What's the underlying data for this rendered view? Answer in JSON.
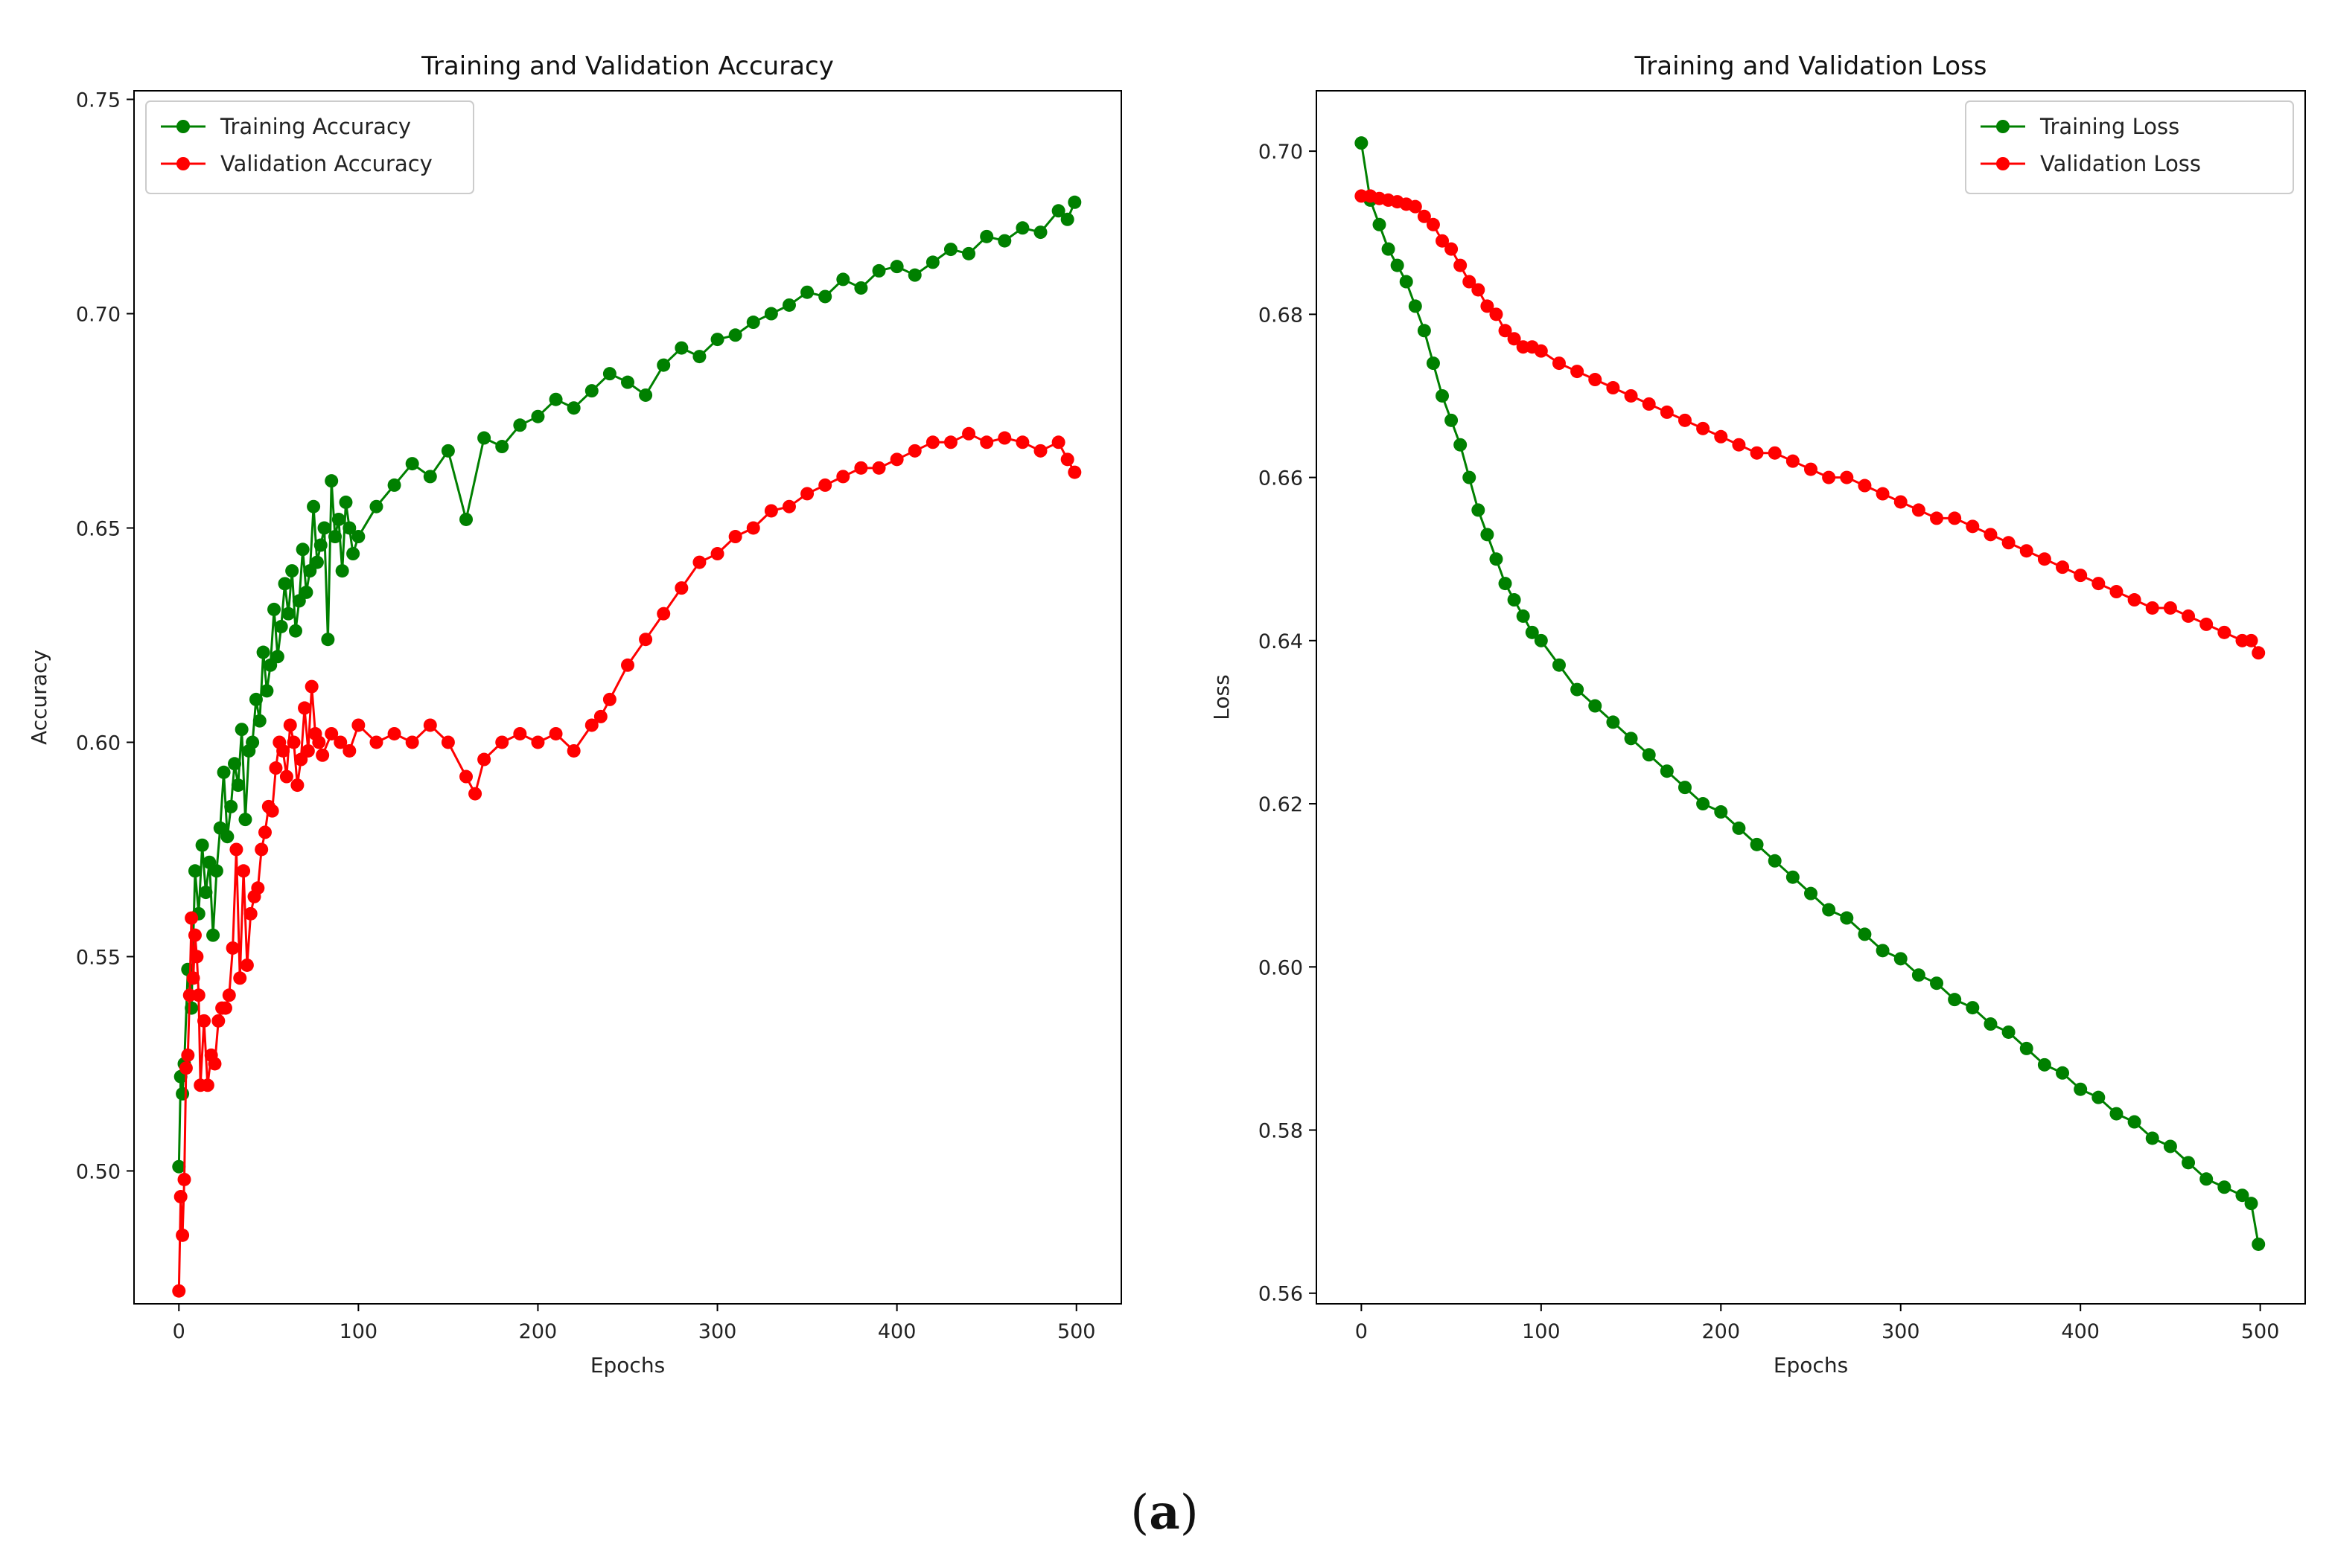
{
  "caption": {
    "open": "(",
    "letter": "a",
    "close": ")"
  },
  "colors": {
    "training": "#008000",
    "validation": "#ff0000",
    "axis": "#000000"
  },
  "chart_data": [
    {
      "type": "line",
      "title": "Training and Validation Accuracy",
      "xlabel": "Epochs",
      "ylabel": "Accuracy",
      "xlim": [
        -25,
        525
      ],
      "ylim": [
        0.469,
        0.752
      ],
      "xticks": [
        0,
        100,
        200,
        300,
        400,
        500
      ],
      "xtick_labels": [
        "0",
        "100",
        "200",
        "300",
        "400",
        "500"
      ],
      "yticks": [
        0.5,
        0.55,
        0.6,
        0.65,
        0.7,
        0.75
      ],
      "ytick_labels": [
        "0.50",
        "0.55",
        "0.60",
        "0.65",
        "0.70",
        "0.75"
      ],
      "legend_position": "top-left",
      "series": [
        {
          "name": "Training Accuracy",
          "color": "#008000",
          "x": [
            0,
            1,
            2,
            3,
            5,
            7,
            9,
            11,
            13,
            15,
            17,
            19,
            21,
            23,
            25,
            27,
            29,
            31,
            33,
            35,
            37,
            39,
            41,
            43,
            45,
            47,
            49,
            51,
            53,
            55,
            57,
            59,
            61,
            63,
            65,
            67,
            69,
            71,
            73,
            75,
            77,
            79,
            81,
            83,
            85,
            87,
            89,
            91,
            93,
            95,
            97,
            100,
            110,
            120,
            130,
            140,
            150,
            160,
            170,
            180,
            190,
            200,
            210,
            220,
            230,
            240,
            250,
            260,
            270,
            280,
            290,
            300,
            310,
            320,
            330,
            340,
            350,
            360,
            370,
            380,
            390,
            400,
            410,
            420,
            430,
            440,
            450,
            460,
            470,
            480,
            490,
            495,
            499
          ],
          "y": [
            0.501,
            0.522,
            0.518,
            0.525,
            0.547,
            0.538,
            0.57,
            0.56,
            0.576,
            0.565,
            0.572,
            0.555,
            0.57,
            0.58,
            0.593,
            0.578,
            0.585,
            0.595,
            0.59,
            0.603,
            0.582,
            0.598,
            0.6,
            0.61,
            0.605,
            0.621,
            0.612,
            0.618,
            0.631,
            0.62,
            0.627,
            0.637,
            0.63,
            0.64,
            0.626,
            0.633,
            0.645,
            0.635,
            0.64,
            0.655,
            0.642,
            0.646,
            0.65,
            0.624,
            0.661,
            0.648,
            0.652,
            0.64,
            0.656,
            0.65,
            0.644,
            0.648,
            0.655,
            0.66,
            0.665,
            0.662,
            0.668,
            0.652,
            0.671,
            0.669,
            0.674,
            0.676,
            0.68,
            0.678,
            0.682,
            0.686,
            0.684,
            0.681,
            0.688,
            0.692,
            0.69,
            0.694,
            0.695,
            0.698,
            0.7,
            0.702,
            0.705,
            0.704,
            0.708,
            0.706,
            0.71,
            0.711,
            0.709,
            0.712,
            0.715,
            0.714,
            0.718,
            0.717,
            0.72,
            0.719,
            0.724,
            0.722,
            0.726
          ]
        },
        {
          "name": "Validation Accuracy",
          "color": "#ff0000",
          "x": [
            0,
            1,
            2,
            3,
            4,
            5,
            6,
            7,
            8,
            9,
            10,
            11,
            12,
            14,
            16,
            18,
            20,
            22,
            24,
            26,
            28,
            30,
            32,
            34,
            36,
            38,
            40,
            42,
            44,
            46,
            48,
            50,
            52,
            54,
            56,
            58,
            60,
            62,
            64,
            66,
            68,
            70,
            72,
            74,
            76,
            78,
            80,
            85,
            90,
            95,
            100,
            110,
            120,
            130,
            140,
            150,
            160,
            165,
            170,
            180,
            190,
            200,
            210,
            220,
            230,
            235,
            240,
            250,
            260,
            270,
            280,
            290,
            300,
            310,
            320,
            330,
            340,
            350,
            360,
            370,
            380,
            390,
            400,
            410,
            420,
            430,
            440,
            450,
            460,
            470,
            480,
            490,
            495,
            499
          ],
          "y": [
            0.472,
            0.494,
            0.485,
            0.498,
            0.524,
            0.527,
            0.541,
            0.559,
            0.545,
            0.555,
            0.55,
            0.541,
            0.52,
            0.535,
            0.52,
            0.527,
            0.525,
            0.535,
            0.538,
            0.538,
            0.541,
            0.552,
            0.575,
            0.545,
            0.57,
            0.548,
            0.56,
            0.564,
            0.566,
            0.575,
            0.579,
            0.585,
            0.584,
            0.594,
            0.6,
            0.598,
            0.592,
            0.604,
            0.6,
            0.59,
            0.596,
            0.608,
            0.598,
            0.613,
            0.602,
            0.6,
            0.597,
            0.602,
            0.6,
            0.598,
            0.604,
            0.6,
            0.602,
            0.6,
            0.604,
            0.6,
            0.592,
            0.588,
            0.596,
            0.6,
            0.602,
            0.6,
            0.602,
            0.598,
            0.604,
            0.606,
            0.61,
            0.618,
            0.624,
            0.63,
            0.636,
            0.642,
            0.644,
            0.648,
            0.65,
            0.654,
            0.655,
            0.658,
            0.66,
            0.662,
            0.664,
            0.664,
            0.666,
            0.668,
            0.67,
            0.67,
            0.672,
            0.67,
            0.671,
            0.67,
            0.668,
            0.67,
            0.666,
            0.663
          ]
        }
      ]
    },
    {
      "type": "line",
      "title": "Training and Validation Loss",
      "xlabel": "Epochs",
      "ylabel": "Loss",
      "xlim": [
        -25,
        525
      ],
      "ylim": [
        0.5587,
        0.7074
      ],
      "xticks": [
        0,
        100,
        200,
        300,
        400,
        500
      ],
      "xtick_labels": [
        "0",
        "100",
        "200",
        "300",
        "400",
        "500"
      ],
      "yticks": [
        0.56,
        0.58,
        0.6,
        0.62,
        0.64,
        0.66,
        0.68,
        0.7
      ],
      "ytick_labels": [
        "0.56",
        "0.58",
        "0.60",
        "0.62",
        "0.64",
        "0.66",
        "0.68",
        "0.70"
      ],
      "legend_position": "top-right",
      "series": [
        {
          "name": "Training Loss",
          "color": "#008000",
          "x": [
            0,
            5,
            10,
            15,
            20,
            25,
            30,
            35,
            40,
            45,
            50,
            55,
            60,
            65,
            70,
            75,
            80,
            85,
            90,
            95,
            100,
            110,
            120,
            130,
            140,
            150,
            160,
            170,
            180,
            190,
            200,
            210,
            220,
            230,
            240,
            250,
            260,
            270,
            280,
            290,
            300,
            310,
            320,
            330,
            340,
            350,
            360,
            370,
            380,
            390,
            400,
            410,
            420,
            430,
            440,
            450,
            460,
            470,
            480,
            490,
            495,
            499
          ],
          "y": [
            0.701,
            0.694,
            0.691,
            0.688,
            0.686,
            0.684,
            0.681,
            0.678,
            0.674,
            0.67,
            0.667,
            0.664,
            0.66,
            0.656,
            0.653,
            0.65,
            0.647,
            0.645,
            0.643,
            0.641,
            0.64,
            0.637,
            0.634,
            0.632,
            0.63,
            0.628,
            0.626,
            0.624,
            0.622,
            0.62,
            0.619,
            0.617,
            0.615,
            0.613,
            0.611,
            0.609,
            0.607,
            0.606,
            0.604,
            0.602,
            0.601,
            0.599,
            0.598,
            0.596,
            0.595,
            0.593,
            0.592,
            0.59,
            0.588,
            0.587,
            0.585,
            0.584,
            0.582,
            0.581,
            0.579,
            0.578,
            0.576,
            0.574,
            0.573,
            0.572,
            0.571,
            0.566
          ]
        },
        {
          "name": "Validation Loss",
          "color": "#ff0000",
          "x": [
            0,
            5,
            10,
            15,
            20,
            25,
            30,
            35,
            40,
            45,
            50,
            55,
            60,
            65,
            70,
            75,
            80,
            85,
            90,
            95,
            100,
            110,
            120,
            130,
            140,
            150,
            160,
            170,
            180,
            190,
            200,
            210,
            220,
            230,
            240,
            250,
            260,
            270,
            280,
            290,
            300,
            310,
            320,
            330,
            340,
            350,
            360,
            370,
            380,
            390,
            400,
            410,
            420,
            430,
            440,
            450,
            460,
            470,
            480,
            490,
            495,
            499
          ],
          "y": [
            0.6945,
            0.6945,
            0.6942,
            0.694,
            0.6938,
            0.6935,
            0.6932,
            0.692,
            0.691,
            0.689,
            0.688,
            0.686,
            0.684,
            0.683,
            0.681,
            0.68,
            0.678,
            0.677,
            0.676,
            0.676,
            0.6755,
            0.674,
            0.673,
            0.672,
            0.671,
            0.67,
            0.669,
            0.668,
            0.667,
            0.666,
            0.665,
            0.664,
            0.663,
            0.663,
            0.662,
            0.661,
            0.66,
            0.66,
            0.659,
            0.658,
            0.657,
            0.656,
            0.655,
            0.655,
            0.654,
            0.653,
            0.652,
            0.651,
            0.65,
            0.649,
            0.648,
            0.647,
            0.646,
            0.645,
            0.644,
            0.644,
            0.643,
            0.642,
            0.641,
            0.64,
            0.64,
            0.6385
          ]
        }
      ]
    }
  ]
}
